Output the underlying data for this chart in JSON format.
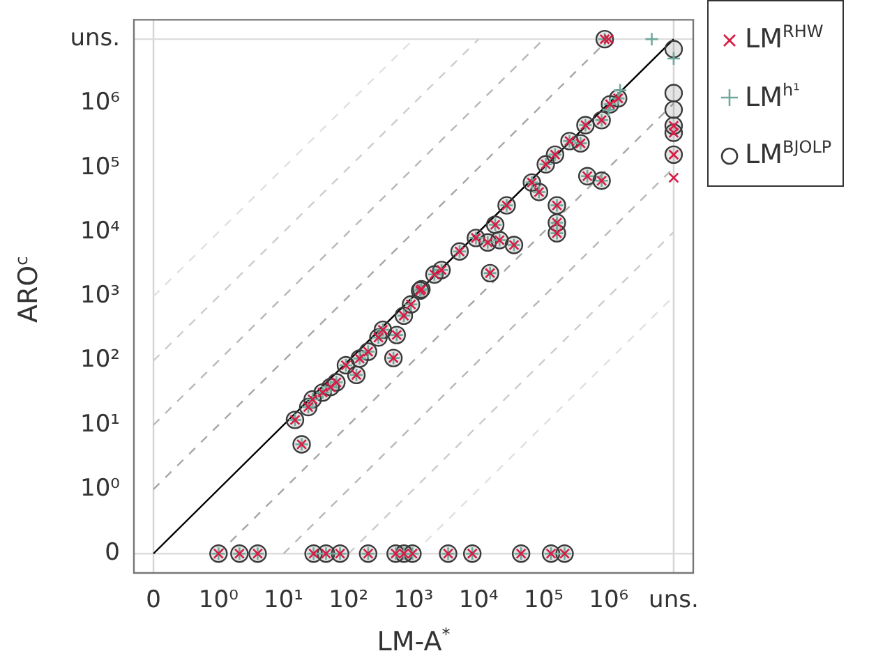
{
  "chart_data": {
    "type": "scatter",
    "xlabel": "LM-A$^{*}$",
    "ylabel": "ARO$^{c}$",
    "log": "xy",
    "grid": false,
    "legend": "top right",
    "xlim": [
      0.05,
      20000000
    ],
    "ylim": [
      0.05,
      20000000
    ],
    "xticks": [
      {
        "value": 0.1,
        "label": "0"
      },
      {
        "value": 1,
        "label": "10⁰"
      },
      {
        "value": 10,
        "label": "10¹"
      },
      {
        "value": 100,
        "label": "10²"
      },
      {
        "value": 1000,
        "label": "10³"
      },
      {
        "value": 10000,
        "label": "10⁴"
      },
      {
        "value": 100000,
        "label": "10⁵"
      },
      {
        "value": 1000000,
        "label": "10⁶"
      },
      {
        "value": 10000000,
        "label": "uns."
      }
    ],
    "yticks": [
      {
        "value": 0.1,
        "label": "0"
      },
      {
        "value": 1,
        "label": "10⁰"
      },
      {
        "value": 10,
        "label": "10¹"
      },
      {
        "value": 100,
        "label": "10²"
      },
      {
        "value": 1000,
        "label": "10³"
      },
      {
        "value": 10000,
        "label": "10⁴"
      },
      {
        "value": 100000,
        "label": "10⁵"
      },
      {
        "value": 1000000,
        "label": "10⁶"
      },
      {
        "value": 10000000,
        "label": "uns."
      }
    ],
    "ref_lines": [
      {
        "axis": "x",
        "value": 0.1,
        "color": "#d4d4d4"
      },
      {
        "axis": "x",
        "value": 10000000,
        "color": "#d4d4d4"
      },
      {
        "axis": "y",
        "value": 0.1,
        "color": "#dddddd"
      },
      {
        "axis": "y",
        "value": 10000000,
        "color": "#dddddd"
      }
    ],
    "series": [
      {
        "name": "LM$^{RHW}$",
        "color": "#d81b45",
        "marker": "cross",
        "x": [
          15,
          19,
          24,
          28,
          40,
          53,
          65,
          91,
          132,
          148,
          200,
          288,
          337,
          490,
          550,
          708,
          912,
          1260,
          1320,
          2090,
          2690,
          5100,
          9100,
          13800,
          18000,
          21000,
          15000,
          35000,
          27000,
          66000,
          85000,
          108000,
          150000,
          250000,
          370000,
          440000,
          780000,
          1050000,
          1400000,
          160000,
          160000,
          160000,
          470000,
          780000,
          870000,
          1,
          2.1,
          4,
          29,
          45,
          74,
          200,
          530,
          710,
          960,
          3400,
          8000,
          45000,
          130000,
          210000,
          1000000,
          10000000,
          10000000,
          10000000,
          10000000
        ],
        "values": [
          12,
          5,
          19,
          25,
          32,
          39,
          46,
          85,
          60,
          108,
          138,
          229,
          302,
          110,
          251,
          501,
          750,
          1230,
          1290,
          2190,
          2570,
          5000,
          8100,
          6900,
          13000,
          7500,
          2300,
          6300,
          26000,
          59000,
          42000,
          113000,
          160000,
          260000,
          240000,
          460000,
          550000,
          970000,
          1200000,
          26000,
          14000,
          9600,
          74000,
          63000,
          10000000,
          0.1,
          0.1,
          0.1,
          0.1,
          0.1,
          0.1,
          0.1,
          0.1,
          0.1,
          0.1,
          0.1,
          0.1,
          0.1,
          0.1,
          0.1,
          10000000,
          450000,
          350000,
          160000,
          70000
        ]
      },
      {
        "name": "LM$^{h¹}$",
        "color": "#6fa89b",
        "marker": "plus",
        "x": [
          15,
          19,
          24,
          28,
          40,
          53,
          65,
          91,
          132,
          148,
          200,
          288,
          337,
          490,
          550,
          708,
          912,
          1260,
          1320,
          2090,
          2690,
          5100,
          9100,
          13800,
          18000,
          21000,
          15000,
          35000,
          27000,
          66000,
          85000,
          108000,
          150000,
          250000,
          370000,
          440000,
          780000,
          1050000,
          1400000,
          160000,
          160000,
          160000,
          470000,
          780000,
          870000,
          1,
          2.1,
          4,
          29,
          45,
          74,
          200,
          530,
          710,
          960,
          3400,
          8000,
          45000,
          130000,
          210000,
          4600000,
          10000000,
          1000000,
          1500000
        ],
        "values": [
          12,
          5,
          19,
          25,
          32,
          39,
          46,
          85,
          60,
          108,
          138,
          229,
          302,
          110,
          251,
          501,
          750,
          1230,
          1290,
          2190,
          2570,
          5000,
          8100,
          6900,
          13000,
          7500,
          2300,
          6300,
          26000,
          59000,
          42000,
          113000,
          160000,
          260000,
          240000,
          460000,
          550000,
          970000,
          1200000,
          26000,
          14000,
          9600,
          74000,
          63000,
          10000000,
          0.1,
          0.1,
          0.1,
          0.1,
          0.1,
          0.1,
          0.1,
          0.1,
          0.1,
          0.1,
          0.1,
          0.1,
          0.1,
          0.1,
          0.1,
          10000000,
          5000000,
          800000,
          1600000
        ]
      },
      {
        "name": "LM$^{BJOLP}$",
        "color": "#3a3a3a",
        "marker": "circle",
        "x": [
          15,
          19,
          24,
          28,
          40,
          53,
          65,
          91,
          132,
          148,
          200,
          288,
          337,
          490,
          550,
          708,
          912,
          1260,
          1320,
          2090,
          2690,
          5100,
          9100,
          13800,
          18000,
          21000,
          15000,
          35000,
          27000,
          66000,
          85000,
          108000,
          150000,
          250000,
          370000,
          440000,
          780000,
          1050000,
          1400000,
          160000,
          160000,
          160000,
          470000,
          780000,
          870000,
          1,
          2.1,
          4,
          29,
          45,
          74,
          200,
          530,
          710,
          960,
          3400,
          8000,
          45000,
          130000,
          210000,
          10000000,
          10000000,
          10000000,
          10000000,
          10000000,
          10000000
        ],
        "values": [
          12,
          5,
          19,
          25,
          32,
          39,
          46,
          85,
          60,
          108,
          138,
          229,
          302,
          110,
          251,
          501,
          750,
          1230,
          1290,
          2190,
          2570,
          5000,
          8100,
          6900,
          13000,
          7500,
          2300,
          6300,
          26000,
          59000,
          42000,
          113000,
          160000,
          260000,
          240000,
          460000,
          550000,
          970000,
          1200000,
          26000,
          14000,
          9600,
          74000,
          63000,
          10000000,
          0.1,
          0.1,
          0.1,
          0.1,
          0.1,
          0.1,
          0.1,
          0.1,
          0.1,
          0.1,
          0.1,
          0.1,
          0.1,
          0.1,
          0.1,
          7000000,
          1450000,
          800000,
          450000,
          350000,
          160000
        ]
      },
      {
        "type": "line",
        "color": "#000000",
        "marker": "none",
        "line_style": "solid",
        "x": [
          0.1,
          10000000
        ],
        "values": [
          0.1,
          10000000
        ]
      },
      {
        "type": "line",
        "color": "#a6a6a6",
        "marker": "none",
        "line_style": "dashed",
        "x": [
          0.1,
          1000000
        ],
        "values": [
          1,
          10000000
        ]
      },
      {
        "type": "line",
        "color": "#b8b8b8",
        "marker": "none",
        "line_style": "dashed",
        "x": [
          0.1,
          100000
        ],
        "values": [
          10,
          10000000
        ]
      },
      {
        "type": "line",
        "color": "#cccccc",
        "marker": "none",
        "line_style": "dashed",
        "x": [
          0.1,
          10000
        ],
        "values": [
          100,
          10000000
        ]
      },
      {
        "type": "line",
        "color": "#e0e0e0",
        "marker": "none",
        "line_style": "dashed",
        "x": [
          0.1,
          1000
        ],
        "values": [
          1000,
          10000000
        ]
      },
      {
        "type": "line",
        "color": "#a6a6a6",
        "marker": "none",
        "line_style": "dashed",
        "x": [
          1,
          10000000
        ],
        "values": [
          0.1,
          1000000
        ]
      },
      {
        "type": "line",
        "color": "#b8b8b8",
        "marker": "none",
        "line_style": "dashed",
        "x": [
          10,
          10000000
        ],
        "values": [
          0.1,
          100000
        ]
      },
      {
        "type": "line",
        "color": "#cccccc",
        "marker": "none",
        "line_style": "dashed",
        "x": [
          100,
          10000000
        ],
        "values": [
          0.1,
          10000
        ]
      },
      {
        "type": "line",
        "color": "#e0e0e0",
        "marker": "none",
        "line_style": "dashed",
        "x": [
          1000,
          10000000
        ],
        "values": [
          0.1,
          1000
        ]
      }
    ]
  }
}
